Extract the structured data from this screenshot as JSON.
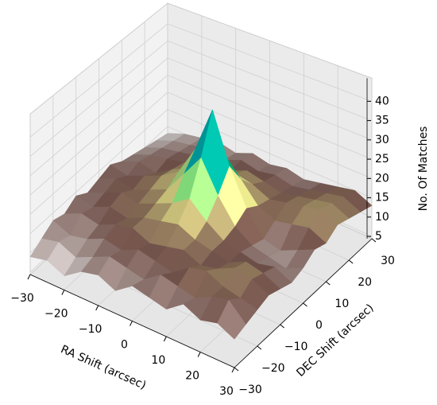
{
  "chart_data": {
    "type": "surface",
    "x": [
      -30,
      -25,
      -20,
      -15,
      -10,
      -5,
      0,
      5,
      10,
      15,
      20,
      25,
      30
    ],
    "y": [
      -30,
      -25,
      -20,
      -15,
      -10,
      -5,
      0,
      5,
      10,
      15,
      20,
      25,
      30
    ],
    "z": [
      [
        9,
        10,
        8,
        11,
        12,
        10,
        13,
        12,
        11,
        14,
        12,
        13,
        11
      ],
      [
        11,
        12,
        10,
        12,
        14,
        13,
        12,
        15,
        14,
        13,
        15,
        16,
        12
      ],
      [
        13,
        11,
        12,
        14,
        13,
        15,
        14,
        13,
        16,
        17,
        15,
        14,
        13
      ],
      [
        12,
        14,
        13,
        15,
        16,
        14,
        15,
        16,
        14,
        15,
        17,
        16,
        14
      ],
      [
        14,
        13,
        15,
        14,
        16,
        17,
        18,
        16,
        15,
        14,
        16,
        15,
        13
      ],
      [
        12,
        14,
        16,
        15,
        17,
        19,
        22,
        18,
        15,
        14,
        13,
        14,
        12
      ],
      [
        13,
        15,
        14,
        16,
        18,
        24,
        30,
        22,
        16,
        13,
        12,
        11,
        13
      ],
      [
        14,
        13,
        15,
        17,
        20,
        28,
        40,
        27,
        18,
        12,
        11,
        13,
        15
      ],
      [
        12,
        14,
        13,
        16,
        18,
        22,
        26,
        21,
        16,
        14,
        15,
        16,
        14
      ],
      [
        11,
        13,
        14,
        15,
        16,
        17,
        18,
        17,
        15,
        16,
        17,
        18,
        16
      ],
      [
        10,
        12,
        13,
        14,
        15,
        14,
        16,
        15,
        14,
        15,
        16,
        17,
        15
      ],
      [
        9,
        11,
        12,
        13,
        12,
        14,
        13,
        14,
        13,
        14,
        15,
        16,
        14
      ],
      [
        8,
        10,
        11,
        12,
        11,
        13,
        12,
        13,
        12,
        13,
        14,
        15,
        13
      ]
    ],
    "xlabel": "RA Shift (arcsec)",
    "ylabel": "DEC Shift (arcsec)",
    "zlabel": "No. Of Matches",
    "xlim": [
      -30,
      30
    ],
    "ylim": [
      -30,
      30
    ],
    "zlim": [
      4.4,
      46
    ],
    "xticks": [
      {
        "value": -30,
        "label": "−30"
      },
      {
        "value": -20,
        "label": "−20"
      },
      {
        "value": -10,
        "label": "−10"
      },
      0,
      10,
      20,
      30
    ],
    "yticks": [
      {
        "value": -30,
        "label": "−30"
      },
      {
        "value": -20,
        "label": "−20"
      },
      {
        "value": -10,
        "label": "−10"
      },
      0,
      10,
      20,
      30
    ],
    "zticks": [
      5,
      10,
      15,
      20,
      25,
      30,
      35,
      40
    ],
    "colormap": [
      "#ffffff",
      "#805c54",
      "#ffff99",
      "#00cc66",
      "#0099ff",
      "#333399"
    ],
    "grid": true
  }
}
